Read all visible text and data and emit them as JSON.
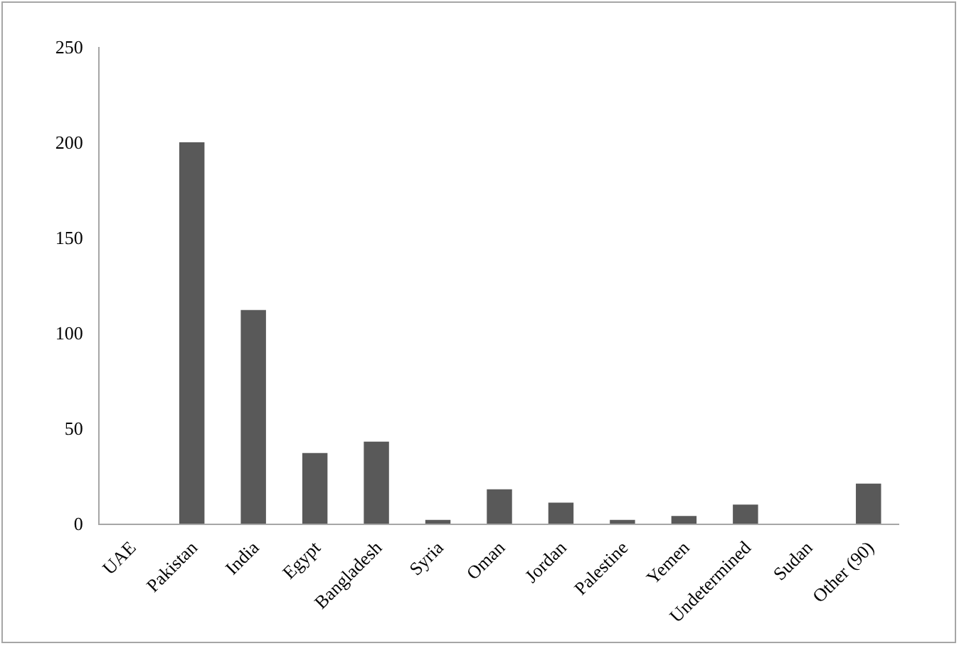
{
  "chart_data": {
    "type": "bar",
    "categories": [
      "UAE",
      "Pakistan",
      "India",
      "Egypt",
      "Bangladesh",
      "Syria",
      "Oman",
      "Jordan",
      "Palestine",
      "Yemen",
      "Undetermined",
      "Sudan",
      "Other (90)"
    ],
    "values": [
      0,
      200,
      112,
      37,
      43,
      2,
      18,
      11,
      2,
      4,
      10,
      0,
      21
    ],
    "color": "#595959",
    "ylim": [
      0,
      250
    ],
    "yticks": [
      0,
      50,
      100,
      150,
      200,
      250
    ],
    "grid": false
  }
}
